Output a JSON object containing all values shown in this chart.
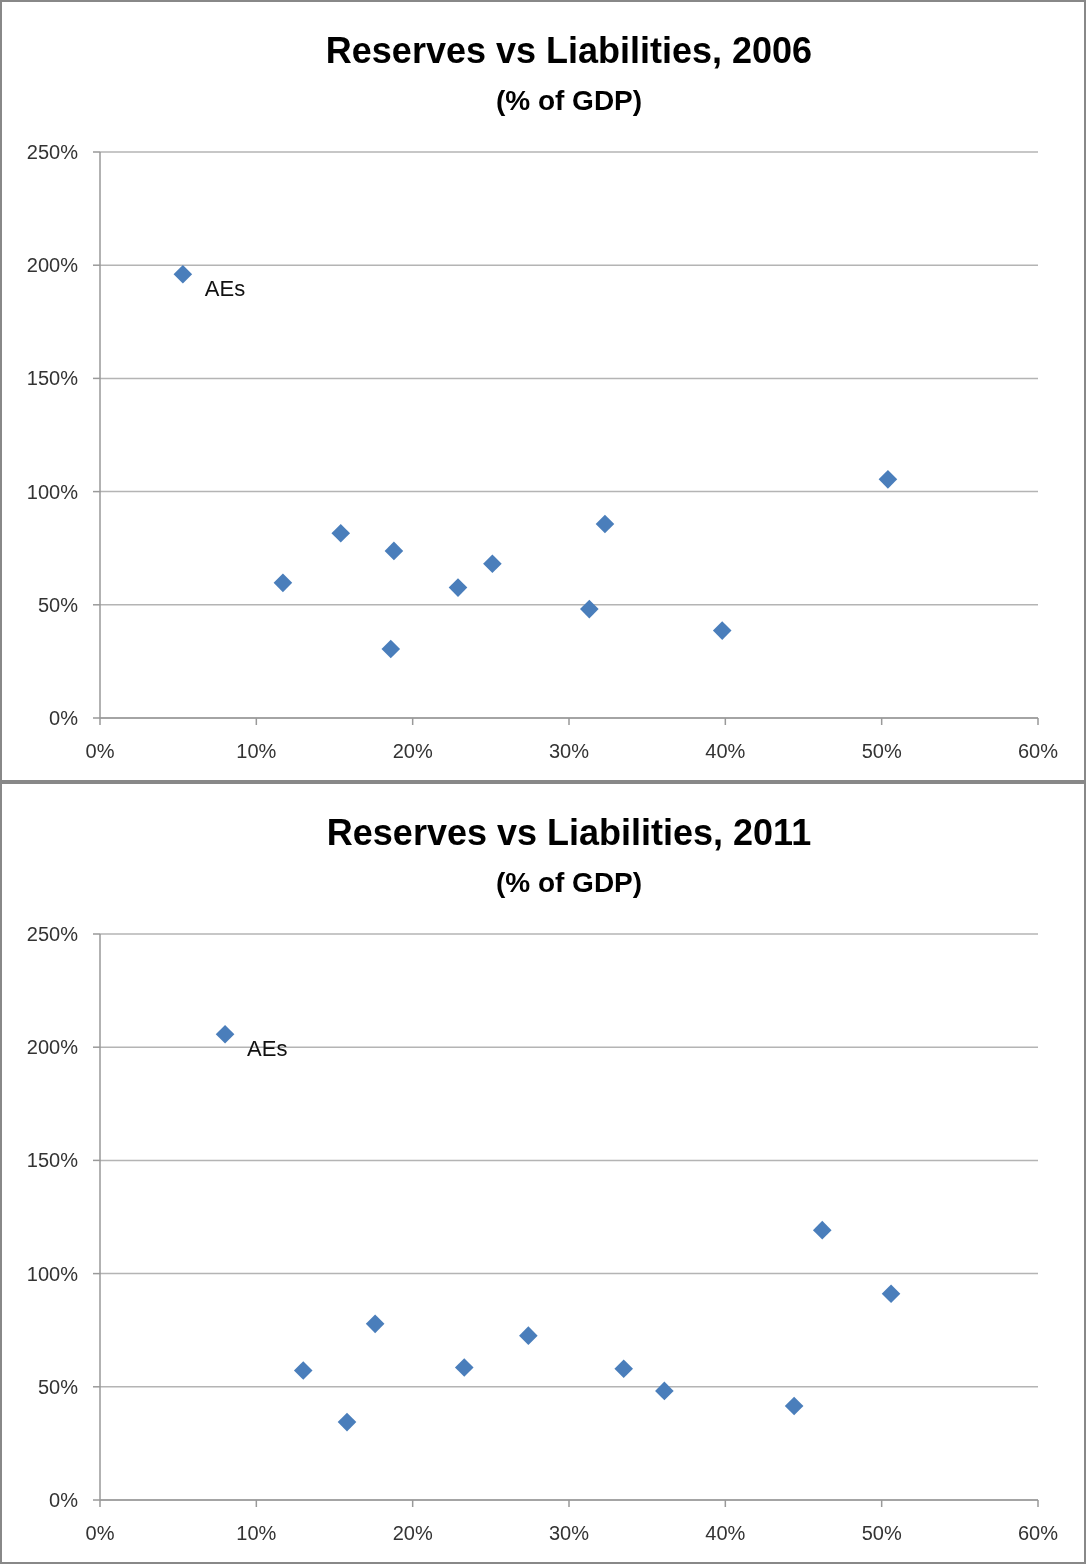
{
  "chart_data": [
    {
      "type": "scatter",
      "title": "Reserves vs Liabilities, 2006",
      "subtitle": "(% of GDP)",
      "x": [
        5.3,
        11.7,
        15.4,
        18.8,
        18.6,
        22.9,
        25.1,
        31.3,
        32.3,
        39.8,
        50.4
      ],
      "series": [
        {
          "color": "#4a7ebb",
          "values": [
            196,
            59.7,
            81.6,
            73.8,
            30.5,
            57.6,
            68.1,
            48.1,
            85.7,
            38.6,
            105.4
          ]
        }
      ],
      "marker": "diamond",
      "grid": "y",
      "xlim": [
        0,
        60
      ],
      "ylim": [
        0,
        250
      ],
      "xticks": [
        {
          "value": 0,
          "label": "0%"
        },
        {
          "value": 10,
          "label": "10%"
        },
        {
          "value": 20,
          "label": "20%"
        },
        {
          "value": 30,
          "label": "30%"
        },
        {
          "value": 40,
          "label": "40%"
        },
        {
          "value": 50,
          "label": "50%"
        },
        {
          "value": 60,
          "label": "60%"
        }
      ],
      "yticks": [
        {
          "value": 0,
          "label": "0%"
        },
        {
          "value": 50,
          "label": "50%"
        },
        {
          "value": 100,
          "label": "100%"
        },
        {
          "value": 150,
          "label": "150%"
        },
        {
          "value": 200,
          "label": "200%"
        },
        {
          "value": 250,
          "label": "250%"
        }
      ],
      "annotations": [
        {
          "text": "AEs",
          "x": 5.3,
          "y": 196
        }
      ]
    },
    {
      "type": "scatter",
      "title": "Reserves vs Liabilities, 2011",
      "subtitle": "(% of GDP)",
      "x": [
        8.0,
        13.0,
        15.8,
        17.6,
        23.3,
        27.4,
        33.5,
        36.1,
        44.4,
        46.2,
        50.6
      ],
      "series": [
        {
          "color": "#4a7ebb",
          "values": [
            205.7,
            57.2,
            34.4,
            77.8,
            58.5,
            72.6,
            58.0,
            48.2,
            41.5,
            119.2,
            91.1
          ]
        }
      ],
      "marker": "diamond",
      "grid": "y",
      "xlim": [
        0,
        60
      ],
      "ylim": [
        0,
        250
      ],
      "xticks": [
        {
          "value": 0,
          "label": "0%"
        },
        {
          "value": 10,
          "label": "10%"
        },
        {
          "value": 20,
          "label": "20%"
        },
        {
          "value": 30,
          "label": "30%"
        },
        {
          "value": 40,
          "label": "40%"
        },
        {
          "value": 50,
          "label": "50%"
        },
        {
          "value": 60,
          "label": "60%"
        }
      ],
      "yticks": [
        {
          "value": 0,
          "label": "0%"
        },
        {
          "value": 50,
          "label": "50%"
        },
        {
          "value": 100,
          "label": "100%"
        },
        {
          "value": 150,
          "label": "150%"
        },
        {
          "value": 200,
          "label": "200%"
        },
        {
          "value": 250,
          "label": "250%"
        }
      ],
      "annotations": [
        {
          "text": "AEs",
          "x": 8.0,
          "y": 205.7
        }
      ]
    }
  ]
}
